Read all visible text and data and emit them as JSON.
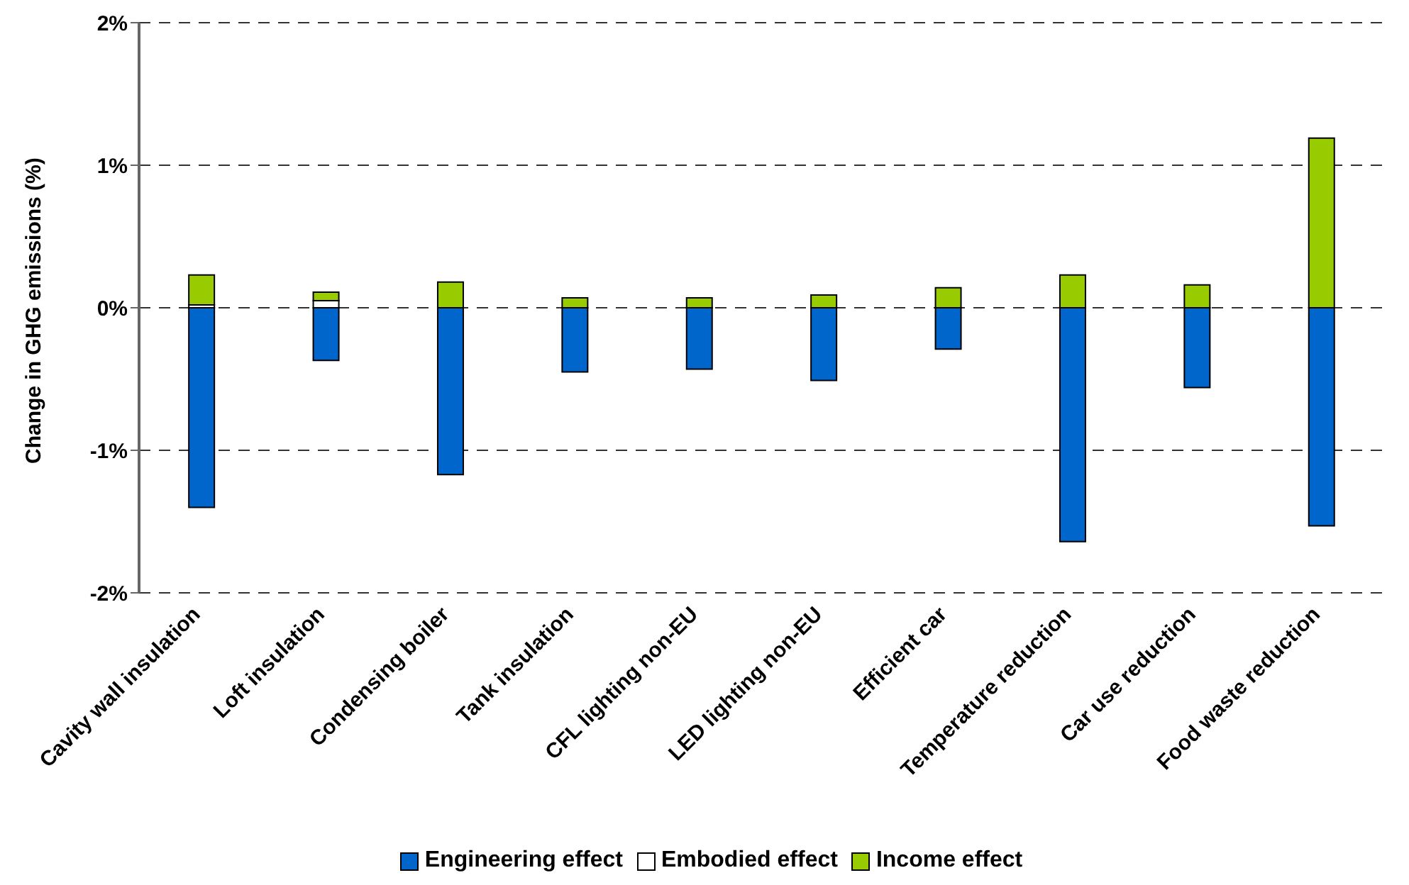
{
  "chart_data": {
    "type": "bar",
    "stacked": true,
    "ylabel": "Change in GHG emissions (%)",
    "categories": [
      "Cavity wall insulation",
      "Loft insulation",
      "Condensing boiler",
      "Tank insulation",
      "CFL lighting non-EU",
      "LED lighting non-EU",
      "Efficient car",
      "Temperature reduction",
      "Car use reduction",
      "Food waste reduction"
    ],
    "series": [
      {
        "name": "Engineering effect",
        "color": "#0066cc",
        "values": [
          -1.4,
          -0.37,
          -1.17,
          -0.45,
          -0.43,
          -0.51,
          -0.29,
          -1.64,
          -0.56,
          -1.53
        ]
      },
      {
        "name": "Embodied effect",
        "color": "#ffffff",
        "values": [
          0.02,
          0.05,
          0,
          0,
          0,
          null,
          0,
          0,
          0,
          0
        ]
      },
      {
        "name": "Income effect",
        "color": "#99cc00",
        "values": [
          0.21,
          0.06,
          0.18,
          0.07,
          0.07,
          0.09,
          0.14,
          0.23,
          0.16,
          1.19
        ]
      }
    ],
    "ylim": [
      -2,
      2
    ],
    "yticks": [
      {
        "value": -2,
        "label": "-2%"
      },
      {
        "value": -1,
        "label": "-1%"
      },
      {
        "value": 0,
        "label": "0%"
      },
      {
        "value": 1,
        "label": "1%"
      },
      {
        "value": 2,
        "label": "2%"
      }
    ],
    "grid": "y",
    "legend": "bottom"
  }
}
